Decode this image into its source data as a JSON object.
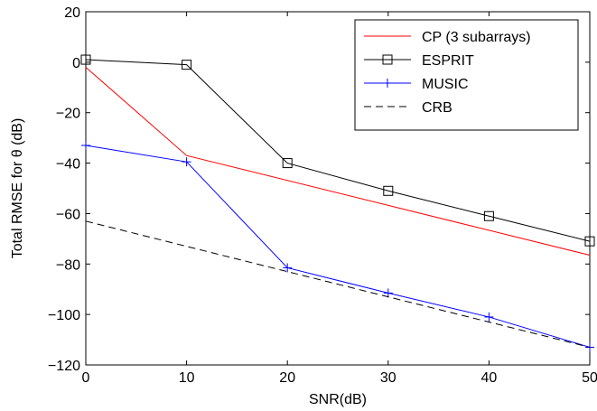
{
  "chart_data": {
    "type": "line",
    "title": "",
    "xlabel": "SNR(dB)",
    "ylabel": "Total RMSE for θ (dB)",
    "xlim": [
      0,
      50
    ],
    "ylim": [
      -120,
      20
    ],
    "xticks": [
      0,
      10,
      20,
      30,
      40,
      50
    ],
    "yticks": [
      20,
      0,
      -20,
      -40,
      -60,
      -80,
      -100,
      -120
    ],
    "grid": false,
    "legend_position": "top-right",
    "series": [
      {
        "name": "CP (3 subarrays)",
        "color": "#ff0000",
        "marker": "none",
        "dash": "solid",
        "x": [
          0,
          10,
          50
        ],
        "y": [
          -2,
          -37,
          -76.5
        ]
      },
      {
        "name": "ESPRIT",
        "color": "#000000",
        "marker": "square",
        "dash": "solid",
        "x": [
          0,
          10,
          20,
          30,
          40,
          50
        ],
        "y": [
          1,
          -1,
          -40,
          -51,
          -61,
          -71
        ]
      },
      {
        "name": "MUSIC",
        "color": "#0000ff",
        "marker": "plus",
        "dash": "solid",
        "x": [
          0,
          10,
          20,
          30,
          40,
          50
        ],
        "y": [
          -33,
          -39.5,
          -81.5,
          -91.5,
          -101,
          -113
        ]
      },
      {
        "name": "CRB",
        "color": "#000000",
        "marker": "none",
        "dash": "dashed",
        "x": [
          0,
          10,
          20,
          30,
          40,
          50
        ],
        "y": [
          -63,
          -73,
          -83,
          -93,
          -103,
          -113
        ]
      }
    ]
  }
}
